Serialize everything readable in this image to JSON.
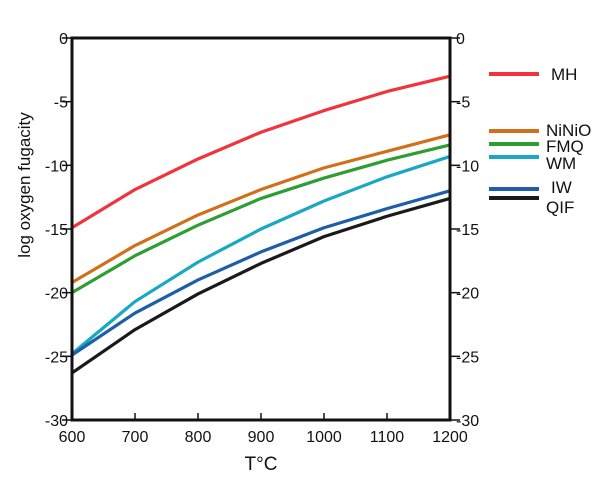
{
  "chart_data": {
    "type": "line",
    "title": "",
    "xlabel": "T°C",
    "ylabel": "log oxygen fugacity",
    "xlim": [
      600,
      1200
    ],
    "ylim": [
      -30,
      0
    ],
    "x": [
      600,
      700,
      800,
      900,
      1000,
      1100,
      1200
    ],
    "xticks": [
      "600",
      "700",
      "800",
      "900",
      "1000",
      "1100",
      "1200"
    ],
    "yticks": [
      "0",
      "-5",
      "-10",
      "-15",
      "-20",
      "-25",
      "-30"
    ],
    "grid": false,
    "legend_position": "right",
    "series": [
      {
        "name": "MH",
        "color": "#f2333b",
        "values": [
          -14.9,
          -11.9,
          -9.5,
          -7.4,
          -5.7,
          -4.2,
          -3.0
        ]
      },
      {
        "name": "NiNiO",
        "color": "#d2701a",
        "values": [
          -19.2,
          -16.3,
          -13.9,
          -11.9,
          -10.2,
          -8.9,
          -7.6
        ]
      },
      {
        "name": "FMQ",
        "color": "#2e9e33",
        "values": [
          -20.0,
          -17.1,
          -14.7,
          -12.6,
          -11.0,
          -9.6,
          -8.4
        ]
      },
      {
        "name": "WM",
        "color": "#19a8c4",
        "values": [
          -24.8,
          -20.7,
          -17.6,
          -15.0,
          -12.8,
          -10.9,
          -9.3
        ]
      },
      {
        "name": "IW",
        "color": "#1e5ea8",
        "values": [
          -24.9,
          -21.6,
          -19.0,
          -16.8,
          -14.9,
          -13.4,
          -12.0
        ]
      },
      {
        "name": "QIF",
        "color": "#1a1a1a",
        "values": [
          -26.3,
          -22.9,
          -20.1,
          -17.7,
          -15.6,
          -14.0,
          -12.6
        ]
      }
    ]
  }
}
